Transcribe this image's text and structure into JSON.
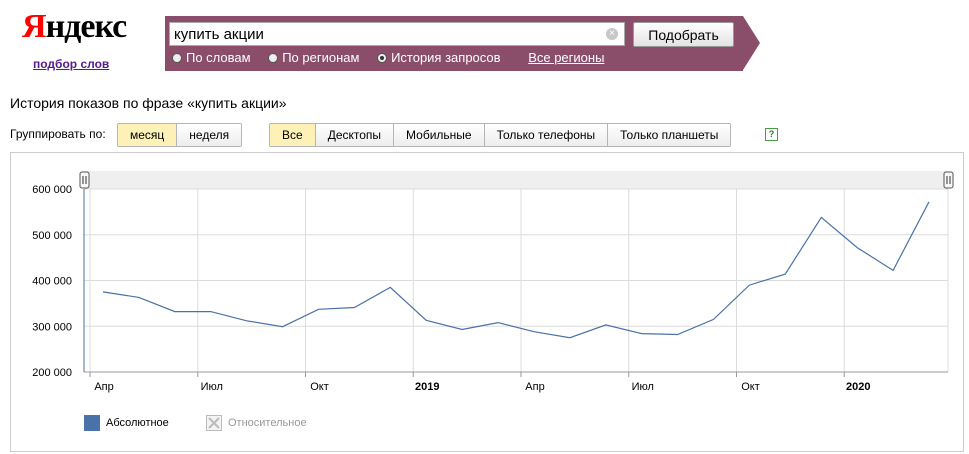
{
  "logo": {
    "text_first": "Я",
    "text_rest": "ндекс",
    "subtitle": "подбор слов"
  },
  "search": {
    "value": "купить акции",
    "placeholder": "",
    "submit_label": "Подобрать"
  },
  "modes": [
    {
      "label": "По словам",
      "checked": false
    },
    {
      "label": "По регионам",
      "checked": false
    },
    {
      "label": "История запросов",
      "checked": true
    }
  ],
  "all_regions_label": "Все регионы",
  "heading": "История показов по фразе «купить акции»",
  "group_label": "Группировать по:",
  "group_buttons": [
    {
      "label": "месяц",
      "active": true
    },
    {
      "label": "неделя",
      "active": false
    }
  ],
  "device_buttons": [
    {
      "label": "Все",
      "active": true
    },
    {
      "label": "Десктопы",
      "active": false
    },
    {
      "label": "Мобильные",
      "active": false
    },
    {
      "label": "Только телефоны",
      "active": false
    },
    {
      "label": "Только планшеты",
      "active": false
    }
  ],
  "help_icon_text": "?",
  "legend": [
    {
      "label": "Абсолютное",
      "color": "#4a72a8",
      "active": true
    },
    {
      "label": "Относительное",
      "color": "#cccccc",
      "active": false
    }
  ],
  "colors": {
    "brand_red": "#ff0000",
    "panel": "#8b4e6a",
    "line": "#4a72a8",
    "active_tab": "#fdf1b8"
  },
  "chart_data": {
    "type": "line",
    "x": [
      "2018-04",
      "2018-05",
      "2018-06",
      "2018-07",
      "2018-08",
      "2018-09",
      "2018-10",
      "2018-11",
      "2018-12",
      "2019-01",
      "2019-02",
      "2019-03",
      "2019-04",
      "2019-05",
      "2019-06",
      "2019-07",
      "2019-08",
      "2019-09",
      "2019-10",
      "2019-11",
      "2019-12",
      "2020-01",
      "2020-02",
      "2020-03"
    ],
    "series": [
      {
        "values": [
          375000,
          363000,
          332000,
          332000,
          312000,
          299000,
          337000,
          341000,
          385000,
          313000,
          293000,
          308000,
          288000,
          275000,
          303000,
          284000,
          282000,
          315000,
          390000,
          414000,
          538000,
          472000,
          422000,
          572000
        ]
      }
    ],
    "ylim": [
      200000,
      600000
    ],
    "yticks": [
      "200 000",
      "300 000",
      "400 000",
      "500 000",
      "600 000"
    ],
    "xticks": [
      {
        "label": "Апр",
        "at": "2018-04",
        "bold": false
      },
      {
        "label": "Июл",
        "at": "2018-07",
        "bold": false
      },
      {
        "label": "Окт",
        "at": "2018-10",
        "bold": false
      },
      {
        "label": "2019",
        "at": "2019-01",
        "bold": true
      },
      {
        "label": "Апр",
        "at": "2019-04",
        "bold": false
      },
      {
        "label": "Июл",
        "at": "2019-07",
        "bold": false
      },
      {
        "label": "Окт",
        "at": "2019-10",
        "bold": false
      },
      {
        "label": "2020",
        "at": "2020-01",
        "bold": true
      }
    ],
    "grid": true,
    "title": "",
    "xlabel": "",
    "ylabel": ""
  }
}
